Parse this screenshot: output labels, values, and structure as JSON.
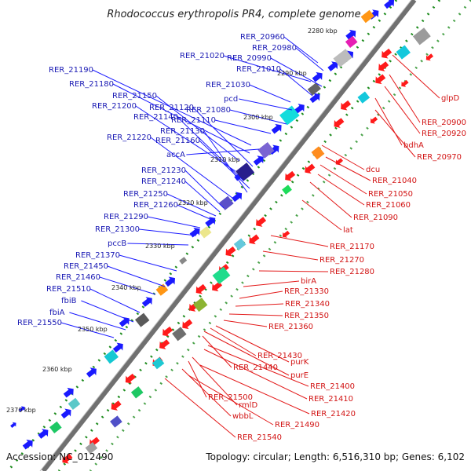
{
  "title": "Rhodococcus erythropolis PR4, complete genome",
  "footer": {
    "accession": "Accession: NC_012490",
    "topology": "Topology: circular; Length: 6,516,310 bp; Genes: 6,102"
  },
  "colors": {
    "forward_gene": "#1a1aff",
    "reverse_gene": "#ff1a1a",
    "forward_label": "#1a1ab4",
    "reverse_label": "#d21414",
    "backbone": "#707070",
    "tick_dots": "#1e8c1e"
  },
  "ticks": [
    "2280 kbp",
    "2290 kbp",
    "2300 kbp",
    "2310 kbp",
    "2320 kbp",
    "2330 kbp",
    "2340 kbp",
    "2350 kbp",
    "2360 kbp",
    "2370 kbp"
  ],
  "left_labels": [
    "RER_20960",
    "RER_20980",
    "RER_21020",
    "RER_20990",
    "RER_21190",
    "RER_21010",
    "RER_21180",
    "RER_21030",
    "RER_21150",
    "pcd",
    "RER_21200",
    "RER_21120",
    "RER_21080",
    "RER_21140",
    "RER_21110",
    "RER_21130",
    "RER_21220",
    "RER_21160",
    "accA",
    "RER_21230",
    "RER_21240",
    "RER_21250",
    "RER_21260",
    "RER_21290",
    "RER_21300",
    "pccB",
    "RER_21370",
    "RER_21450",
    "RER_21460",
    "RER_21510",
    "fbiB",
    "fbiA",
    "RER_21550"
  ],
  "right_labels": [
    "glpD",
    "RER_20900",
    "RER_20920",
    "bdhA",
    "RER_20970",
    "dcu",
    "RER_21040",
    "RER_21050",
    "RER_21060",
    "RER_21090",
    "lat",
    "RER_21170",
    "RER_21270",
    "RER_21280",
    "birA",
    "RER_21330",
    "RER_21340",
    "RER_21350",
    "RER_21360",
    "purK",
    "RER_21430",
    "purE",
    "RER_21440",
    "RER_21400",
    "RER_21410",
    "rmlD",
    "RER_21500",
    "RER_21420",
    "wbbL",
    "RER_21490",
    "RER_21540"
  ]
}
